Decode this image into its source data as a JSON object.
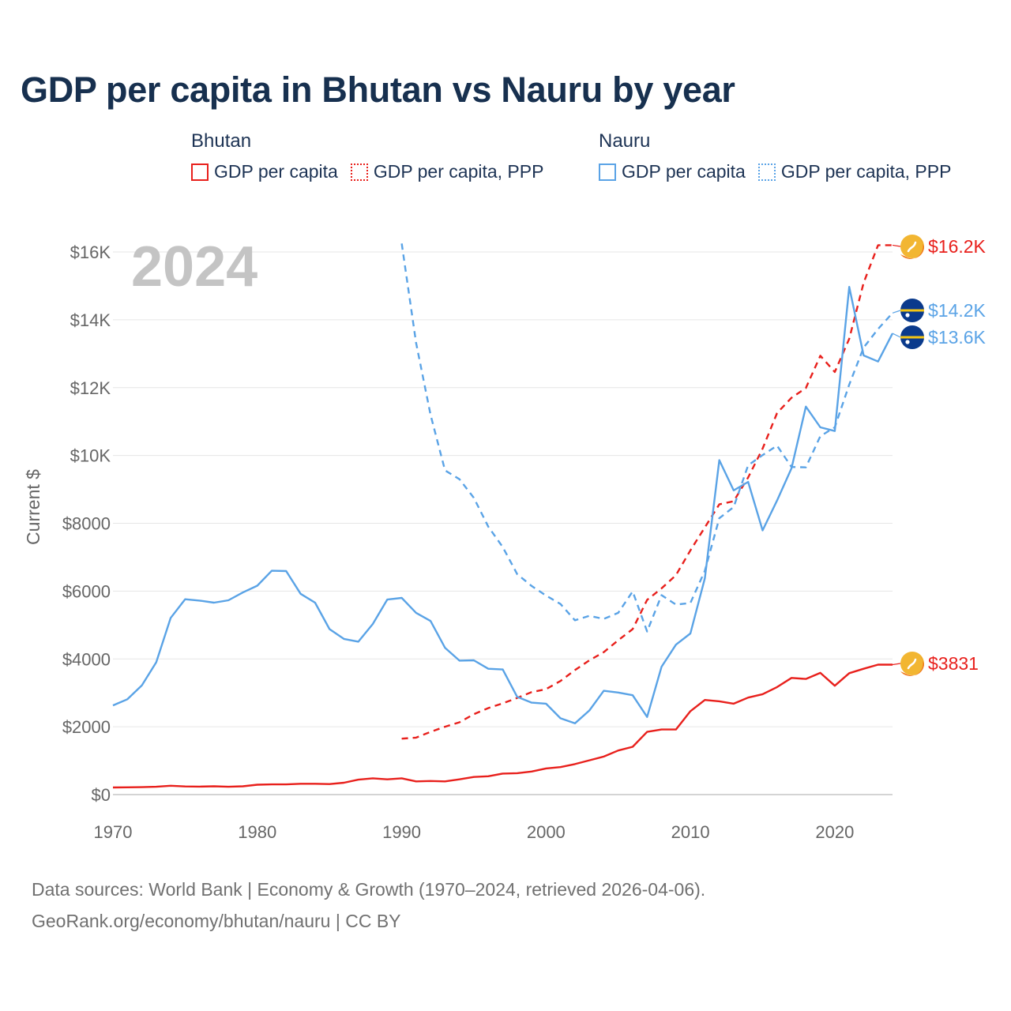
{
  "title": "GDP per capita in Bhutan vs Nauru by year",
  "colors": {
    "bhutan": "#e8201c",
    "nauru": "#5aa3e6",
    "grid": "#e6e6e6",
    "axis_text": "#666666",
    "year_watermark": "#c4c4c4"
  },
  "legend": {
    "groups": [
      {
        "name": "Bhutan",
        "items": [
          {
            "label": "GDP per capita",
            "style": "solid",
            "color": "#e8201c"
          },
          {
            "label": "GDP per capita, PPP",
            "style": "dotted",
            "color": "#e8201c"
          }
        ]
      },
      {
        "name": "Nauru",
        "items": [
          {
            "label": "GDP per capita",
            "style": "solid",
            "color": "#5aa3e6"
          },
          {
            "label": "GDP per capita, PPP",
            "style": "dotted",
            "color": "#5aa3e6"
          }
        ]
      }
    ]
  },
  "footer": {
    "line1": "Data sources: World Bank | Economy & Growth (1970–2024, retrieved 2026-04-06).",
    "line2": "GeoRank.org/economy/bhutan/nauru | CC BY"
  },
  "chart_data": {
    "type": "line",
    "year_label": "2024",
    "ylabel": "Current $",
    "xlabel": "",
    "xlim": [
      1970,
      2024
    ],
    "ylim": [
      0,
      16500
    ],
    "x_ticks": [
      1970,
      1980,
      1990,
      2000,
      2010,
      2020
    ],
    "x_tick_labels": [
      "1970",
      "1980",
      "1990",
      "2000",
      "2010",
      "2020"
    ],
    "y_ticks": [
      0,
      2000,
      4000,
      6000,
      8000,
      10000,
      12000,
      14000,
      16000
    ],
    "y_tick_labels": [
      "$0",
      "$2000",
      "$4000",
      "$6000",
      "$8000",
      "$10K",
      "$12K",
      "$14K",
      "$16K"
    ],
    "series": [
      {
        "name": "Bhutan GDP per capita",
        "country": "bhutan",
        "dashed": false,
        "x": [
          1970,
          1971,
          1972,
          1973,
          1974,
          1975,
          1976,
          1977,
          1978,
          1979,
          1980,
          1981,
          1982,
          1983,
          1984,
          1985,
          1986,
          1987,
          1988,
          1989,
          1990,
          1991,
          1992,
          1993,
          1994,
          1995,
          1996,
          1997,
          1998,
          1999,
          2000,
          2001,
          2002,
          2003,
          2004,
          2005,
          2006,
          2007,
          2008,
          2009,
          2010,
          2011,
          2012,
          2013,
          2014,
          2015,
          2016,
          2017,
          2018,
          2019,
          2020,
          2021,
          2022,
          2023,
          2024
        ],
        "values": [
          210,
          215,
          220,
          230,
          260,
          240,
          235,
          245,
          230,
          245,
          290,
          300,
          300,
          320,
          320,
          310,
          350,
          440,
          480,
          450,
          480,
          390,
          400,
          390,
          450,
          520,
          540,
          620,
          630,
          680,
          770,
          810,
          900,
          1010,
          1120,
          1300,
          1410,
          1850,
          1920,
          1920,
          2460,
          2790,
          2750,
          2680,
          2860,
          2960,
          3170,
          3440,
          3410,
          3590,
          3210,
          3580,
          3710,
          3831,
          3831
        ],
        "end_label": "$3831"
      },
      {
        "name": "Bhutan GDP per capita, PPP",
        "country": "bhutan",
        "dashed": true,
        "x": [
          1990,
          1991,
          1992,
          1993,
          1994,
          1995,
          1996,
          1997,
          1998,
          1999,
          2000,
          2001,
          2002,
          2003,
          2004,
          2005,
          2006,
          2007,
          2008,
          2009,
          2010,
          2011,
          2012,
          2013,
          2014,
          2015,
          2016,
          2017,
          2018,
          2019,
          2020,
          2021,
          2022,
          2023,
          2024
        ],
        "values": [
          1650,
          1680,
          1850,
          2000,
          2130,
          2370,
          2550,
          2690,
          2850,
          3020,
          3110,
          3350,
          3670,
          3960,
          4200,
          4550,
          4880,
          5740,
          6080,
          6470,
          7200,
          7880,
          8560,
          8650,
          9350,
          10200,
          11250,
          11700,
          11990,
          12940,
          12460,
          13440,
          15090,
          16200,
          16200
        ],
        "end_label": "$16.2K"
      },
      {
        "name": "Nauru GDP per capita",
        "country": "nauru",
        "dashed": false,
        "x": [
          1970,
          1971,
          1972,
          1973,
          1974,
          1975,
          1976,
          1977,
          1978,
          1979,
          1980,
          1981,
          1982,
          1983,
          1984,
          1985,
          1986,
          1987,
          1988,
          1989,
          1990,
          1991,
          1992,
          1993,
          1994,
          1995,
          1996,
          1997,
          1998,
          1999,
          2000,
          2001,
          2002,
          2003,
          2004,
          2005,
          2006,
          2007,
          2008,
          2009,
          2010,
          2011,
          2012,
          2013,
          2014,
          2015,
          2016,
          2017,
          2018,
          2019,
          2020,
          2021,
          2022,
          2023,
          2024
        ],
        "values": [
          2630,
          2810,
          3220,
          3900,
          5210,
          5760,
          5720,
          5660,
          5730,
          5960,
          6160,
          6600,
          6590,
          5920,
          5660,
          4880,
          4590,
          4510,
          5030,
          5750,
          5800,
          5360,
          5120,
          4330,
          3950,
          3960,
          3710,
          3690,
          2880,
          2710,
          2680,
          2250,
          2100,
          2480,
          3060,
          3010,
          2930,
          2290,
          3770,
          4420,
          4750,
          6380,
          9860,
          8970,
          9220,
          7790,
          8670,
          9620,
          11440,
          10830,
          10720,
          14970,
          12950,
          12770,
          13600
        ],
        "end_label": "$13.6K"
      },
      {
        "name": "Nauru GDP per capita, PPP",
        "country": "nauru",
        "dashed": true,
        "x": [
          1990,
          1991,
          1992,
          1993,
          1994,
          1995,
          1996,
          1997,
          1998,
          1999,
          2000,
          2001,
          2002,
          2003,
          2004,
          2005,
          2006,
          2007,
          2008,
          2009,
          2010,
          2011,
          2012,
          2013,
          2014,
          2015,
          2016,
          2017,
          2018,
          2019,
          2020,
          2021,
          2022,
          2023,
          2024
        ],
        "values": [
          16250,
          13320,
          11200,
          9560,
          9300,
          8750,
          7900,
          7300,
          6500,
          6150,
          5870,
          5620,
          5140,
          5270,
          5180,
          5360,
          5990,
          4810,
          5880,
          5600,
          5650,
          6600,
          8150,
          8480,
          9710,
          10010,
          10290,
          9660,
          9650,
          10570,
          10830,
          12090,
          13180,
          13730,
          14200
        ],
        "end_label": "$14.2K"
      }
    ]
  }
}
